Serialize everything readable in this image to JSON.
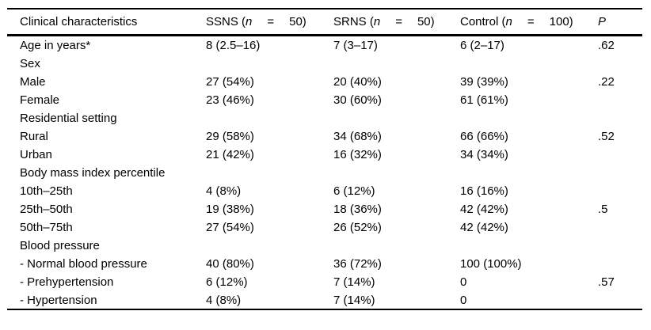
{
  "table": {
    "columns": [
      {
        "label": "Clinical characteristics"
      },
      {
        "pre": "SSNS (",
        "var": "n",
        "eq": "=",
        "post": "50)"
      },
      {
        "pre": "SRNS (",
        "var": "n",
        "eq": "=",
        "post": "50)"
      },
      {
        "pre": "Control (",
        "var": "n",
        "eq": "=",
        "post": "100)"
      },
      {
        "label": "P"
      }
    ],
    "rows": [
      {
        "label": "Age in years*",
        "ssns": "8 (2.5–16)",
        "srns": "7 (3–17)",
        "control": "6 (2–17)",
        "p": ".62"
      },
      {
        "label": "Sex",
        "ssns": "",
        "srns": "",
        "control": "",
        "p": ""
      },
      {
        "label": "Male",
        "ssns": "27 (54%)",
        "srns": "20 (40%)",
        "control": "39 (39%)",
        "p": ".22"
      },
      {
        "label": "Female",
        "ssns": "23 (46%)",
        "srns": "30 (60%)",
        "control": "61 (61%)",
        "p": ""
      },
      {
        "label": "Residential setting",
        "ssns": "",
        "srns": "",
        "control": "",
        "p": ""
      },
      {
        "label": "Rural",
        "ssns": "29 (58%)",
        "srns": "34 (68%)",
        "control": "66 (66%)",
        "p": ".52"
      },
      {
        "label": "Urban",
        "ssns": "21 (42%)",
        "srns": "16 (32%)",
        "control": "34 (34%)",
        "p": ""
      },
      {
        "label": "Body mass index percentile",
        "ssns": "",
        "srns": "",
        "control": "",
        "p": ""
      },
      {
        "label": "10th–25th",
        "ssns": "4 (8%)",
        "srns": "6 (12%)",
        "control": "16 (16%)",
        "p": ""
      },
      {
        "label": "25th–50th",
        "ssns": "19 (38%)",
        "srns": "18 (36%)",
        "control": "42 (42%)",
        "p": ".5"
      },
      {
        "label": "50th–75th",
        "ssns": "27 (54%)",
        "srns": "26 (52%)",
        "control": "42 (42%)",
        "p": ""
      },
      {
        "label": "Blood pressure",
        "ssns": "",
        "srns": "",
        "control": "",
        "p": ""
      },
      {
        "label": "- Normal blood pressure",
        "ssns": "40 (80%)",
        "srns": "36 (72%)",
        "control": "100 (100%)",
        "p": ""
      },
      {
        "label": "- Prehypertension",
        "ssns": "6 (12%)",
        "srns": "7 (14%)",
        "control": "0",
        "p": ".57"
      },
      {
        "label": "- Hypertension",
        "ssns": "4 (8%)",
        "srns": "7 (14%)",
        "control": "0",
        "p": ""
      }
    ]
  }
}
